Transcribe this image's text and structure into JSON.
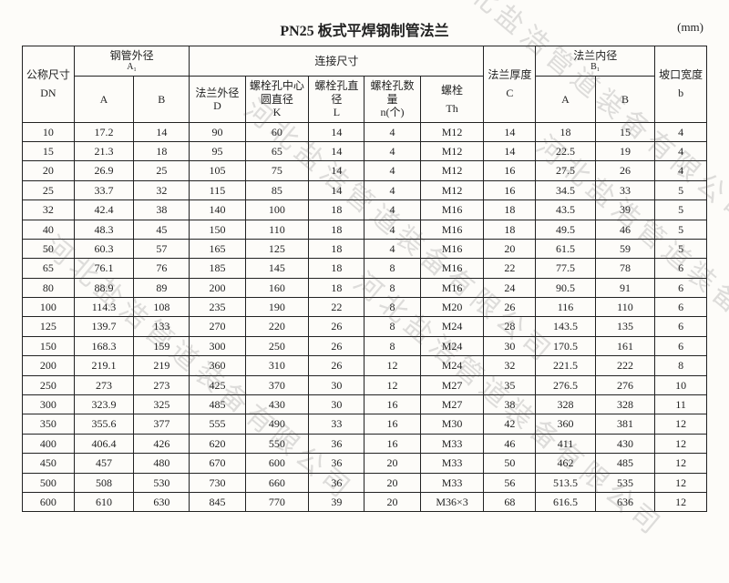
{
  "title": "PN25 板式平焊钢制管法兰",
  "unit": "(mm)",
  "watermark": "河北盐浩管道装备有限公司",
  "header": {
    "col_dn_top": "公称尺寸",
    "col_dn_sym": "DN",
    "col_pipe_od": "钢管外径",
    "col_pipe_od_sym": "A₁",
    "col_A": "A",
    "col_B": "B",
    "col_conn": "连接尺寸",
    "col_flange_od": "法兰外径",
    "col_flange_od_sym": "D",
    "col_bolt_circle": "螺栓孔中心圆直径",
    "col_bolt_circle_sym": "K",
    "col_bolt_hole": "螺栓孔直径",
    "col_bolt_hole_sym": "L",
    "col_bolt_count": "螺栓孔数量",
    "col_bolt_count_sym": "n(个)",
    "col_bolt": "螺栓",
    "col_bolt_sym": "Th",
    "col_thk": "法兰厚度",
    "col_thk_sym": "C",
    "col_flange_id": "法兰内径",
    "col_flange_id_sym": "B₁",
    "col_bevel": "坡口宽度",
    "col_bevel_sym": "b"
  },
  "rows": [
    {
      "dn": "10",
      "a": "17.2",
      "b": "14",
      "d": "90",
      "k": "60",
      "l": "14",
      "n": "4",
      "th": "M12",
      "c": "14",
      "ia": "18",
      "ib": "15",
      "bev": "4"
    },
    {
      "dn": "15",
      "a": "21.3",
      "b": "18",
      "d": "95",
      "k": "65",
      "l": "14",
      "n": "4",
      "th": "M12",
      "c": "14",
      "ia": "22.5",
      "ib": "19",
      "bev": "4"
    },
    {
      "dn": "20",
      "a": "26.9",
      "b": "25",
      "d": "105",
      "k": "75",
      "l": "14",
      "n": "4",
      "th": "M12",
      "c": "16",
      "ia": "27.5",
      "ib": "26",
      "bev": "4"
    },
    {
      "dn": "25",
      "a": "33.7",
      "b": "32",
      "d": "115",
      "k": "85",
      "l": "14",
      "n": "4",
      "th": "M12",
      "c": "16",
      "ia": "34.5",
      "ib": "33",
      "bev": "5"
    },
    {
      "dn": "32",
      "a": "42.4",
      "b": "38",
      "d": "140",
      "k": "100",
      "l": "18",
      "n": "4",
      "th": "M16",
      "c": "18",
      "ia": "43.5",
      "ib": "39",
      "bev": "5"
    },
    {
      "dn": "40",
      "a": "48.3",
      "b": "45",
      "d": "150",
      "k": "110",
      "l": "18",
      "n": "4",
      "th": "M16",
      "c": "18",
      "ia": "49.5",
      "ib": "46",
      "bev": "5"
    },
    {
      "dn": "50",
      "a": "60.3",
      "b": "57",
      "d": "165",
      "k": "125",
      "l": "18",
      "n": "4",
      "th": "M16",
      "c": "20",
      "ia": "61.5",
      "ib": "59",
      "bev": "5"
    },
    {
      "dn": "65",
      "a": "76.1",
      "b": "76",
      "d": "185",
      "k": "145",
      "l": "18",
      "n": "8",
      "th": "M16",
      "c": "22",
      "ia": "77.5",
      "ib": "78",
      "bev": "6"
    },
    {
      "dn": "80",
      "a": "88.9",
      "b": "89",
      "d": "200",
      "k": "160",
      "l": "18",
      "n": "8",
      "th": "M16",
      "c": "24",
      "ia": "90.5",
      "ib": "91",
      "bev": "6"
    },
    {
      "dn": "100",
      "a": "114.3",
      "b": "108",
      "d": "235",
      "k": "190",
      "l": "22",
      "n": "8",
      "th": "M20",
      "c": "26",
      "ia": "116",
      "ib": "110",
      "bev": "6"
    },
    {
      "dn": "125",
      "a": "139.7",
      "b": "133",
      "d": "270",
      "k": "220",
      "l": "26",
      "n": "8",
      "th": "M24",
      "c": "28",
      "ia": "143.5",
      "ib": "135",
      "bev": "6"
    },
    {
      "dn": "150",
      "a": "168.3",
      "b": "159",
      "d": "300",
      "k": "250",
      "l": "26",
      "n": "8",
      "th": "M24",
      "c": "30",
      "ia": "170.5",
      "ib": "161",
      "bev": "6"
    },
    {
      "dn": "200",
      "a": "219.1",
      "b": "219",
      "d": "360",
      "k": "310",
      "l": "26",
      "n": "12",
      "th": "M24",
      "c": "32",
      "ia": "221.5",
      "ib": "222",
      "bev": "8"
    },
    {
      "dn": "250",
      "a": "273",
      "b": "273",
      "d": "425",
      "k": "370",
      "l": "30",
      "n": "12",
      "th": "M27",
      "c": "35",
      "ia": "276.5",
      "ib": "276",
      "bev": "10"
    },
    {
      "dn": "300",
      "a": "323.9",
      "b": "325",
      "d": "485",
      "k": "430",
      "l": "30",
      "n": "16",
      "th": "M27",
      "c": "38",
      "ia": "328",
      "ib": "328",
      "bev": "11"
    },
    {
      "dn": "350",
      "a": "355.6",
      "b": "377",
      "d": "555",
      "k": "490",
      "l": "33",
      "n": "16",
      "th": "M30",
      "c": "42",
      "ia": "360",
      "ib": "381",
      "bev": "12"
    },
    {
      "dn": "400",
      "a": "406.4",
      "b": "426",
      "d": "620",
      "k": "550",
      "l": "36",
      "n": "16",
      "th": "M33",
      "c": "46",
      "ia": "411",
      "ib": "430",
      "bev": "12"
    },
    {
      "dn": "450",
      "a": "457",
      "b": "480",
      "d": "670",
      "k": "600",
      "l": "36",
      "n": "20",
      "th": "M33",
      "c": "50",
      "ia": "462",
      "ib": "485",
      "bev": "12"
    },
    {
      "dn": "500",
      "a": "508",
      "b": "530",
      "d": "730",
      "k": "660",
      "l": "36",
      "n": "20",
      "th": "M33",
      "c": "56",
      "ia": "513.5",
      "ib": "535",
      "bev": "12"
    },
    {
      "dn": "600",
      "a": "610",
      "b": "630",
      "d": "845",
      "k": "770",
      "l": "39",
      "n": "20",
      "th": "M36×3",
      "c": "68",
      "ia": "616.5",
      "ib": "636",
      "bev": "12"
    }
  ],
  "style": {
    "bg": "#fdfcf9",
    "border": "#222222",
    "font_family": "SimSun",
    "title_fontsize": 16,
    "cell_fontsize": 12
  }
}
